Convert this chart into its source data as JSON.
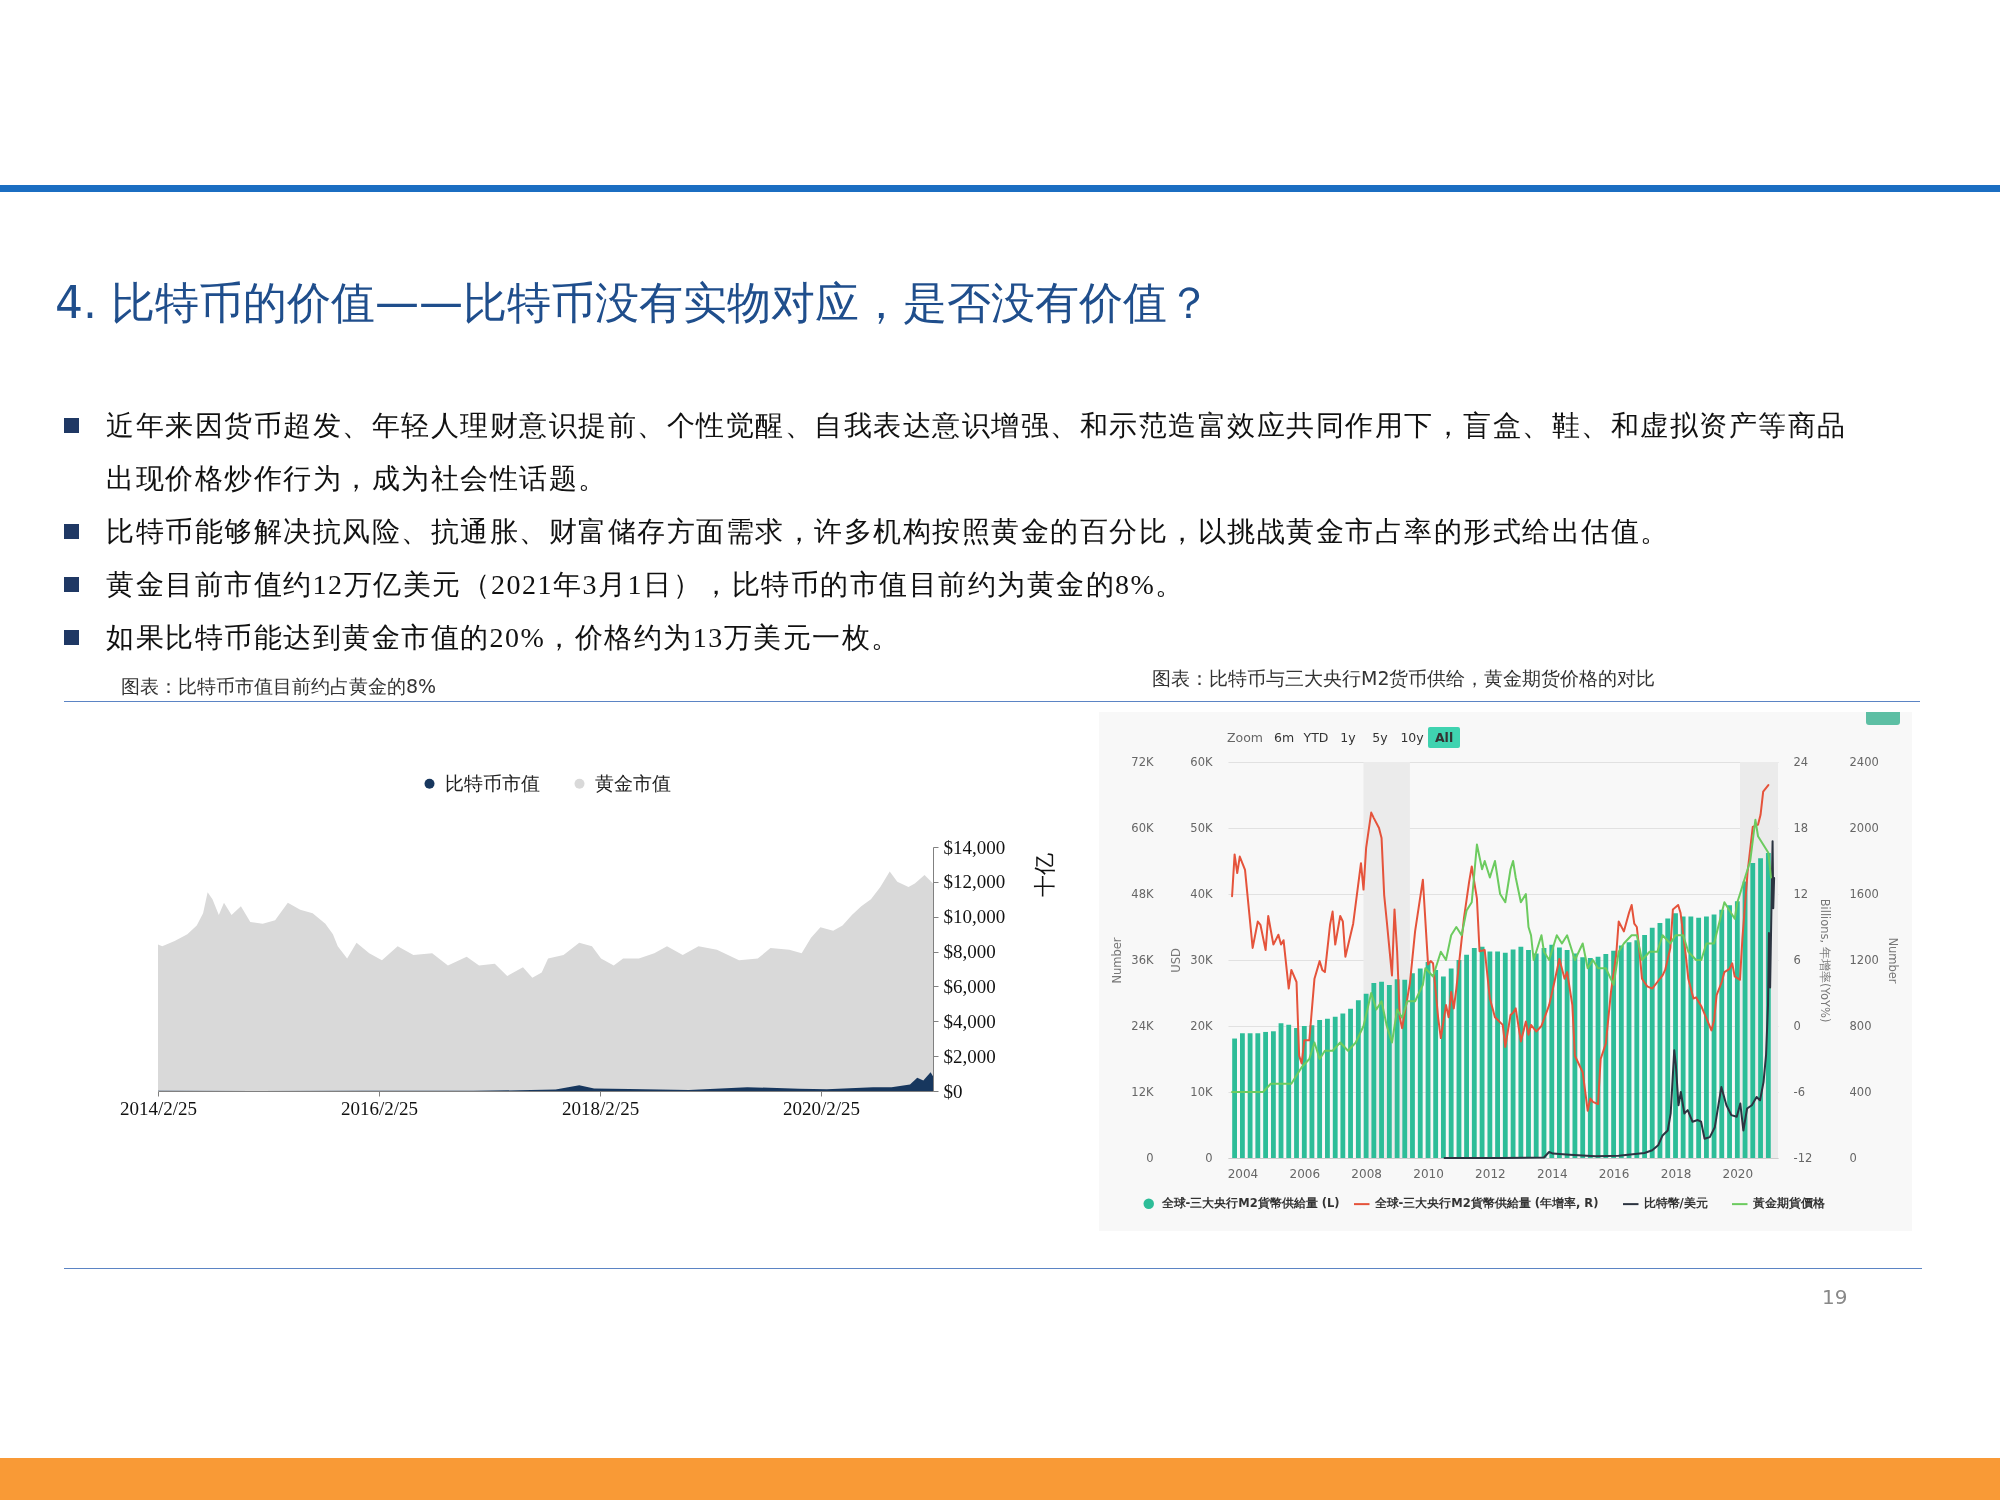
{
  "chart_data": [
    {
      "type": "other",
      "title": "4. 比特币的价值——比特币没有实物对应，是否没有价值？",
      "annotations": [
        "近年来因货币超发、年轻人理财意识提前、个性觉醒、自我表达意识增强、和示范造富效应共同作用下，盲盒、鞋、和虚拟资产等商品出现价格炒作行为，成为社会性话题。",
        "比特币能够解决抗风险、抗通胀、财富储存方面需求，许多机构按照黄金的百分比，以挑战黄金市占率的形式给出估值。",
        "黄金目前市值约12万亿美元（2021年3月1日），比特币的市值目前约为黄金的8%。",
        "如果比特币能达到黄金市值的20%，价格约为13万美元一枚。",
        "19"
      ]
    },
    {
      "type": "area",
      "title": "图表：比特币市值目前约占黄金的8%",
      "ylabel": "十亿",
      "legend": "top",
      "xlim": [
        "2014-02-25",
        "2021-03-01"
      ],
      "xticks": [
        {
          "value": "2014-02-25",
          "label": "2014/2/25"
        },
        {
          "value": "2016-02-25",
          "label": "2016/2/25"
        },
        {
          "value": "2018-02-25",
          "label": "2018/2/25"
        },
        {
          "value": "2020-02-25",
          "label": "2020/2/25"
        }
      ],
      "ylim": [
        0,
        14000
      ],
      "yticks": [
        {
          "value": 0,
          "label": "$0"
        },
        {
          "value": 2000,
          "label": "$2,000"
        },
        {
          "value": 4000,
          "label": "$4,000"
        },
        {
          "value": 6000,
          "label": "$6,000"
        },
        {
          "value": 8000,
          "label": "$8,000"
        },
        {
          "value": 10000,
          "label": "$10,000"
        },
        {
          "value": 12000,
          "label": "$12,000"
        },
        {
          "value": 14000,
          "label": "$14,000"
        }
      ],
      "series": [
        {
          "name": "比特币市值",
          "color": "#17375e",
          "x": [
            "2014-02-25",
            "2015-01-15",
            "2016-01-01",
            "2017-01-01",
            "2017-06-01",
            "2017-10-01",
            "2017-12-18",
            "2018-02-05",
            "2018-06-01",
            "2018-12-15",
            "2019-06-26",
            "2019-12-15",
            "2020-03-15",
            "2020-08-15",
            "2020-10-15",
            "2020-12-15",
            "2021-01-08",
            "2021-01-28",
            "2021-02-21",
            "2021-03-01"
          ],
          "values": [
            10,
            0,
            10,
            20,
            40,
            80,
            330,
            150,
            120,
            60,
            220,
            130,
            100,
            220,
            210,
            380,
            760,
            600,
            1070,
            850
          ]
        },
        {
          "name": "黄金市值",
          "color": "#d9d9d9",
          "x": [
            "2014-02-25",
            "2014-03-11",
            "2014-04-21",
            "2014-06-02",
            "2014-07-03",
            "2014-07-24",
            "2014-08-08",
            "2014-08-24",
            "2014-09-14",
            "2014-10-01",
            "2014-10-26",
            "2014-11-26",
            "2014-12-27",
            "2015-02-06",
            "2015-03-19",
            "2015-04-30",
            "2015-06-10",
            "2015-07-21",
            "2015-09-01",
            "2015-09-26",
            "2015-10-12",
            "2015-11-12",
            "2015-12-13",
            "2016-01-24",
            "2016-03-06",
            "2016-04-27",
            "2016-06-18",
            "2016-08-19",
            "2016-10-10",
            "2016-12-11",
            "2017-01-21",
            "2017-03-14",
            "2017-04-24",
            "2017-06-15",
            "2017-07-16",
            "2017-08-16",
            "2017-09-06",
            "2017-10-27",
            "2017-12-18",
            "2018-01-29",
            "2018-02-28",
            "2018-04-11",
            "2018-05-12",
            "2018-07-03",
            "2018-08-23",
            "2018-10-04",
            "2018-11-25",
            "2019-01-16",
            "2019-03-18",
            "2019-05-30",
            "2019-07-31",
            "2019-09-11",
            "2019-11-12",
            "2019-12-23",
            "2020-01-23",
            "2020-02-23",
            "2020-04-05",
            "2020-05-06",
            "2020-06-06",
            "2020-07-07",
            "2020-08-08",
            "2020-09-08",
            "2020-10-09",
            "2020-11-03",
            "2020-12-10",
            "2020-12-31",
            "2021-02-01",
            "2021-03-01"
          ],
          "values": [
            8400,
            8300,
            8600,
            9000,
            9500,
            10200,
            11400,
            11000,
            10100,
            10800,
            10100,
            10600,
            9700,
            9600,
            9800,
            10800,
            10400,
            10200,
            9600,
            9000,
            8300,
            7600,
            8500,
            7900,
            7500,
            8300,
            7800,
            7900,
            7200,
            7700,
            7200,
            7300,
            6600,
            7100,
            6500,
            6800,
            7600,
            7800,
            8500,
            8300,
            7600,
            7200,
            7600,
            7600,
            7900,
            8300,
            7800,
            8300,
            8100,
            7500,
            7600,
            8200,
            8100,
            7900,
            8800,
            9400,
            9200,
            9500,
            10100,
            10600,
            11000,
            11700,
            12600,
            12000,
            11700,
            11900,
            12400,
            11900
          ]
        }
      ]
    },
    {
      "type": "bar",
      "title": "图表：比特币与三大央行M2货币供给，黄金期货价格的对比",
      "annotations": [
        "Zoom",
        "6m",
        "YTD",
        "1y",
        "5y",
        "10y",
        "All"
      ],
      "ylabel": "USD",
      "legend": "bottom",
      "grid": "y",
      "xlim": [
        "2003-07-15",
        "2021-04-25"
      ],
      "xticks": [
        "2004",
        "2006",
        "2008",
        "2010",
        "2012",
        "2014",
        "2016",
        "2018",
        "2020"
      ],
      "ylim": [
        0,
        60000
      ],
      "yticks": [
        0,
        {
          "value": 10000,
          "label": "10K"
        },
        {
          "value": 20000,
          "label": "20K"
        },
        {
          "value": 30000,
          "label": "30K"
        },
        {
          "value": 40000,
          "label": "40K"
        },
        {
          "value": 50000,
          "label": "50K"
        },
        {
          "value": 60000,
          "label": "60K"
        }
      ],
      "bands": [
        {
          "axis": "x",
          "from": "2007-12",
          "to": "2009-06",
          "color": "#ebebeb"
        },
        {
          "axis": "x",
          "from": "2020-02",
          "to": "2021-04-25",
          "color": "#ebebeb"
        }
      ],
      "series": [
        {
          "name": "全球-三大央行M2貨幣供給量 (L)",
          "color": "#2dbd98",
          "x": [
            "2003-10",
            "2004-01",
            "2004-04",
            "2004-07",
            "2004-10",
            "2005-01",
            "2005-04",
            "2005-07",
            "2005-10",
            "2006-01",
            "2006-04",
            "2006-07",
            "2006-10",
            "2007-01",
            "2007-04",
            "2007-07",
            "2007-10",
            "2008-01",
            "2008-04",
            "2008-07",
            "2008-10",
            "2009-01",
            "2009-04",
            "2009-07",
            "2009-10",
            "2010-01",
            "2010-04",
            "2010-07",
            "2010-10",
            "2011-01",
            "2011-04",
            "2011-07",
            "2011-10",
            "2012-01",
            "2012-04",
            "2012-07",
            "2012-10",
            "2013-01",
            "2013-04",
            "2013-07",
            "2013-10",
            "2014-01",
            "2014-04",
            "2014-07",
            "2014-10",
            "2015-01",
            "2015-04",
            "2015-07",
            "2015-10",
            "2016-01",
            "2016-04",
            "2016-07",
            "2016-10",
            "2017-01",
            "2017-04",
            "2017-07",
            "2017-10",
            "2018-01",
            "2018-04",
            "2018-07",
            "2018-10",
            "2019-01",
            "2019-04",
            "2019-07",
            "2019-10",
            "2020-01",
            "2020-04",
            "2020-07",
            "2020-10",
            "2021-01"
          ],
          "values": [
            18100,
            18900,
            18900,
            18900,
            19100,
            19200,
            20400,
            20200,
            19700,
            20000,
            20100,
            20900,
            21100,
            21400,
            21900,
            22600,
            23900,
            24900,
            26500,
            26700,
            26200,
            27100,
            27000,
            28000,
            28700,
            29700,
            28500,
            27500,
            28700,
            30000,
            30800,
            31800,
            32000,
            31300,
            31300,
            31100,
            31600,
            32000,
            31500,
            31000,
            31800,
            32300,
            31900,
            31500,
            31000,
            30400,
            30300,
            30500,
            30900,
            31400,
            32200,
            32700,
            33000,
            33800,
            34900,
            35600,
            36300,
            37100,
            36600,
            36600,
            36400,
            36600,
            36900,
            37600,
            38300,
            38900,
            41900,
            44700,
            45400,
            46200
          ]
        }
      ]
    },
    {
      "type": "line",
      "ylabel": "Number",
      "y2label": "Billions, 年增率(YoY%)",
      "y3label": "Number",
      "legend": "bottom",
      "tick_labels": "y",
      "xlim": [
        "2003-07-15",
        "2021-04-25"
      ],
      "ylim": [
        0,
        72000
      ],
      "yticks": [
        0,
        {
          "value": 12000,
          "label": "12K"
        },
        {
          "value": 24000,
          "label": "24K"
        },
        {
          "value": 36000,
          "label": "36K"
        },
        {
          "value": 48000,
          "label": "48K"
        },
        {
          "value": 60000,
          "label": "60K"
        },
        {
          "value": 72000,
          "label": "72K"
        }
      ],
      "y2lim": [
        -12,
        24
      ],
      "y2ticks": [
        -12,
        -6,
        0,
        6,
        12,
        18,
        24
      ],
      "y3lim": [
        0,
        2400
      ],
      "y3ticks": [
        0,
        400,
        800,
        1200,
        1600,
        2000,
        2400
      ],
      "series": [
        {
          "name": "全球-三大央行M2貨幣供給量 (年增率, R)",
          "axis": "y2",
          "color": "#e5533b",
          "x": [
            "2003-09",
            "2003-10",
            "2003-11",
            "2003-12",
            "2004-02",
            "2004-03",
            "2004-05",
            "2004-07",
            "2004-08",
            "2004-10",
            "2004-11",
            "2005-01",
            "2005-03",
            "2005-04",
            "2005-05",
            "2005-07",
            "2005-08",
            "2005-10",
            "2005-11",
            "2005-12",
            "2006-01",
            "2006-03",
            "2006-05",
            "2006-07",
            "2006-08",
            "2006-09",
            "2006-11",
            "2006-12",
            "2007-01",
            "2007-03",
            "2007-04",
            "2007-05",
            "2007-08",
            "2007-11",
            "2007-12",
            "2008-01",
            "2008-03",
            "2008-04",
            "2008-06",
            "2008-07",
            "2008-08",
            "2008-09",
            "2008-11",
            "2008-12",
            "2009-01",
            "2009-02",
            "2009-03",
            "2009-06",
            "2009-08",
            "2009-11",
            "2010-01",
            "2010-02",
            "2010-03",
            "2010-05",
            "2010-06",
            "2010-08",
            "2010-09",
            "2010-10",
            "2010-11",
            "2010-12",
            "2011-03",
            "2011-05",
            "2011-06",
            "2011-08",
            "2011-09",
            "2011-11",
            "2012-01",
            "2012-03",
            "2012-06",
            "2012-07",
            "2012-09",
            "2012-10",
            "2012-11",
            "2013-01",
            "2013-03",
            "2013-04",
            "2013-05",
            "2013-07",
            "2013-09",
            "2013-12",
            "2014-02",
            "2014-04",
            "2014-06",
            "2014-07",
            "2014-09",
            "2014-10",
            "2015-01",
            "2015-03",
            "2015-04",
            "2015-05",
            "2015-07",
            "2015-08",
            "2015-10",
            "2015-12",
            "2016-02",
            "2016-03",
            "2016-05",
            "2016-07",
            "2016-08",
            "2016-09",
            "2016-10",
            "2016-11",
            "2016-12",
            "2017-02",
            "2017-04",
            "2017-06",
            "2017-08",
            "2017-09",
            "2017-11",
            "2017-12",
            "2018-02",
            "2018-03",
            "2018-05",
            "2018-06",
            "2018-08",
            "2018-09",
            "2018-11",
            "2019-01",
            "2019-03",
            "2019-04",
            "2019-05",
            "2019-07",
            "2019-08",
            "2019-10",
            "2019-11",
            "2019-12",
            "2020-02",
            "2020-03",
            "2020-05",
            "2020-07",
            "2020-09",
            "2020-10",
            "2020-11",
            "2021-01"
          ],
          "values": [
            11.8,
            15.6,
            13.9,
            15.4,
            14.2,
            11.9,
            7.1,
            9.5,
            9.2,
            6.9,
            10.0,
            7.4,
            8.3,
            7.4,
            7.8,
            3.4,
            5.1,
            4.0,
            -2.7,
            -3.4,
            -1.3,
            -1.3,
            4.3,
            5.9,
            5.1,
            4.9,
            9.2,
            10.4,
            7.4,
            10.0,
            9.5,
            6.3,
            9.3,
            14.8,
            12.4,
            16.2,
            19.4,
            18.9,
            18.0,
            17.1,
            11.9,
            9.5,
            4.6,
            10.6,
            6.8,
            0.8,
            -0.2,
            3.9,
            8.6,
            13.3,
            5.6,
            5.9,
            5.7,
            0.7,
            -1.1,
            1.9,
            0.8,
            3.1,
            1.6,
            3.4,
            9.8,
            13.1,
            14.5,
            11.6,
            6.8,
            6.9,
            2.5,
            0.8,
            0.1,
            -1.9,
            1.0,
            1.2,
            1.6,
            -1.4,
            0.4,
            -0.8,
            0.1,
            -0.5,
            0.0,
            1.9,
            4.0,
            6.1,
            4.3,
            4.9,
            1.9,
            -2.7,
            -4.2,
            -7.7,
            -6.6,
            -6.9,
            -7.1,
            -3.0,
            -1.6,
            3.1,
            6.5,
            9.5,
            8.6,
            10.3,
            11.0,
            9.3,
            9.0,
            6.8,
            4.3,
            3.6,
            3.4,
            4.0,
            4.6,
            5.1,
            7.1,
            10.6,
            11.0,
            10.3,
            6.5,
            4.3,
            2.5,
            2.6,
            1.8,
            0.7,
            -0.4,
            0.5,
            2.8,
            4.0,
            4.9,
            5.2,
            5.7,
            4.5,
            4.2,
            8.0,
            14.0,
            18.1,
            18.3,
            19.2,
            21.3,
            21.9
          ]
        },
        {
          "name": "比特幣/美元",
          "color": "#2c3441",
          "x": [
            "2010-07-15",
            "2012-06-01",
            "2013-10-01",
            "2013-11-30",
            "2014-01-15",
            "2014-08-01",
            "2015-06-01",
            "2016-03-01",
            "2016-12-31",
            "2017-04-01",
            "2017-06-10",
            "2017-08-01",
            "2017-10-01",
            "2017-11-05",
            "2017-12-17",
            "2018-01-05",
            "2018-02-05",
            "2018-03-05",
            "2018-04-15",
            "2018-05-25",
            "2018-07-20",
            "2018-09-20",
            "2018-10-30",
            "2018-12-10",
            "2019-02-10",
            "2019-04-10",
            "2019-06-26",
            "2019-08-25",
            "2019-10-22",
            "2019-12-25",
            "2020-02-05",
            "2020-03-12",
            "2020-04-25",
            "2020-06-20",
            "2020-08-15",
            "2020-09-25",
            "2020-11-05",
            "2020-12-05",
            "2020-12-28",
            "2021-01-08",
            "2021-01-22",
            "2021-02-20",
            "2021-02-28",
            "2021-03-10"
          ],
          "values": [
            0,
            0,
            100,
            1100,
            800,
            600,
            300,
            400,
            900,
            1400,
            2300,
            4100,
            5000,
            8100,
            19600,
            16900,
            9600,
            12000,
            8100,
            8700,
            6600,
            6900,
            6600,
            3500,
            3800,
            5600,
            12900,
            9600,
            7800,
            7500,
            9900,
            5000,
            9000,
            9600,
            11100,
            10500,
            13800,
            18700,
            27800,
            40900,
            31000,
            57600,
            45400,
            50900
          ]
        },
        {
          "name": "黃金期貨價格",
          "axis": "y3",
          "color": "#6ccb5f",
          "x": [
            "2003-09",
            "2004-01",
            "2004-05",
            "2004-09",
            "2004-12",
            "2005-04",
            "2005-08",
            "2005-12",
            "2006-03",
            "2006-05",
            "2006-07",
            "2006-09",
            "2006-12",
            "2007-03",
            "2007-06",
            "2007-09",
            "2007-12",
            "2008-03",
            "2008-05",
            "2008-07",
            "2008-09",
            "2008-11",
            "2009-01",
            "2009-03",
            "2009-05",
            "2009-08",
            "2009-11",
            "2009-12",
            "2010-03",
            "2010-06",
            "2010-08",
            "2010-10",
            "2010-12",
            "2011-02",
            "2011-04",
            "2011-06",
            "2011-08",
            "2011-10",
            "2011-11",
            "2012-01",
            "2012-03",
            "2012-05",
            "2012-07",
            "2012-09",
            "2012-10",
            "2012-11",
            "2013-01",
            "2013-03",
            "2013-04",
            "2013-05",
            "2013-06",
            "2013-08",
            "2013-09",
            "2013-10",
            "2013-12",
            "2014-03",
            "2014-05",
            "2014-07",
            "2014-10",
            "2015-01",
            "2015-03",
            "2015-05",
            "2015-07",
            "2015-10",
            "2016-01",
            "2016-03",
            "2016-05",
            "2016-08",
            "2016-10",
            "2016-12",
            "2017-03",
            "2017-06",
            "2017-08",
            "2017-11",
            "2018-01",
            "2018-04",
            "2018-06",
            "2018-09",
            "2018-11",
            "2019-01",
            "2019-04",
            "2019-08",
            "2019-10",
            "2019-12",
            "2020-01",
            "2020-02",
            "2020-04",
            "2020-06",
            "2020-08",
            "2020-09",
            "2020-11",
            "2021-01",
            "2021-02"
          ],
          "values": [
            400,
            400,
            400,
            400,
            450,
            450,
            450,
            550,
            600,
            700,
            600,
            650,
            650,
            700,
            650,
            700,
            800,
            1000,
            900,
            950,
            800,
            700,
            900,
            850,
            950,
            950,
            1050,
            1150,
            1100,
            1250,
            1200,
            1350,
            1400,
            1350,
            1500,
            1550,
            1900,
            1750,
            1800,
            1700,
            1800,
            1600,
            1550,
            1750,
            1800,
            1700,
            1550,
            1600,
            1400,
            1350,
            1200,
            1300,
            1350,
            1250,
            1200,
            1350,
            1300,
            1350,
            1200,
            1300,
            1150,
            1200,
            1150,
            1150,
            1050,
            1250,
            1300,
            1350,
            1350,
            1200,
            1250,
            1250,
            1350,
            1300,
            1350,
            1350,
            1250,
            1200,
            1200,
            1300,
            1300,
            1550,
            1500,
            1450,
            1550,
            1600,
            1700,
            1800,
            2050,
            1950,
            1900,
            1850,
            1700
          ]
        }
      ]
    }
  ]
}
